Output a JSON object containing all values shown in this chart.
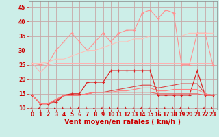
{
  "bg_color": "#cceee8",
  "grid_color": "#c8a8a8",
  "xlabel_str": "Vent moyen/en rafales ( km/h )",
  "xlabel_color": "#cc0000",
  "xlabel_fontsize": 7,
  "tick_color": "#cc0000",
  "tick_fontsize": 5.5,
  "ylim": [
    9.5,
    47
  ],
  "xlim": [
    -0.5,
    23.5
  ],
  "yticks": [
    10,
    15,
    20,
    25,
    30,
    35,
    40,
    45
  ],
  "xticks": [
    0,
    1,
    2,
    3,
    4,
    5,
    6,
    7,
    8,
    9,
    10,
    11,
    12,
    13,
    14,
    15,
    16,
    17,
    18,
    19,
    20,
    21,
    22,
    23
  ],
  "lines": [
    {
      "color": "#ffb0b0",
      "lw": 0.8,
      "marker": null,
      "y": [
        25.5,
        22.5,
        25,
        25.5,
        25.5,
        25.5,
        25.5,
        25.5,
        25.5,
        25.5,
        25.5,
        25.5,
        25.5,
        25.5,
        25.5,
        25.5,
        25.5,
        25.5,
        25.5,
        25.5,
        25.5,
        25.5,
        25.5,
        25.5
      ]
    },
    {
      "color": "#ff9090",
      "lw": 0.8,
      "marker": "+",
      "ms": 3.5,
      "y": [
        25.5,
        25,
        25.5,
        30,
        33,
        36,
        33,
        30,
        33,
        36,
        33,
        36,
        37,
        37,
        43,
        44,
        41,
        44,
        43,
        25,
        25,
        36,
        36,
        25
      ]
    },
    {
      "color": "#ffc0b8",
      "lw": 0.8,
      "marker": null,
      "y": [
        25.5,
        25.5,
        26,
        27,
        27,
        28,
        29,
        30,
        30,
        31,
        32,
        33,
        33,
        34,
        34,
        35,
        35,
        35,
        35,
        35,
        36,
        36,
        36,
        36
      ]
    },
    {
      "color": "#dd2222",
      "lw": 0.9,
      "marker": "+",
      "ms": 3.5,
      "y": [
        14.5,
        11.5,
        11.5,
        12,
        14.5,
        15,
        15,
        19,
        19,
        19,
        23,
        23,
        23,
        23,
        23,
        23,
        14.5,
        14.5,
        14.5,
        14.5,
        14.5,
        23,
        14.5,
        14.5
      ]
    },
    {
      "color": "#dd4444",
      "lw": 0.8,
      "marker": null,
      "y": [
        14.5,
        11.5,
        11.5,
        12.5,
        14.5,
        14.5,
        14.5,
        15,
        15.5,
        15.5,
        16,
        16.5,
        17,
        17.5,
        18,
        18,
        17,
        17.5,
        18,
        18.5,
        18.5,
        18.5,
        15,
        14.5
      ]
    },
    {
      "color": "#ee6060",
      "lw": 0.8,
      "marker": null,
      "y": [
        14.5,
        11.5,
        11.5,
        13,
        14.5,
        14.5,
        14.5,
        15,
        15.5,
        15.5,
        15.5,
        15.5,
        15.5,
        15.5,
        15.5,
        15.5,
        15,
        15,
        15,
        15,
        15,
        15,
        14.5,
        14.5
      ]
    },
    {
      "color": "#ff8080",
      "lw": 0.8,
      "marker": null,
      "y": [
        14.5,
        11.5,
        11.5,
        13,
        14.5,
        14.5,
        14.5,
        15,
        15.5,
        15.5,
        15.5,
        16,
        16,
        16.5,
        17,
        17,
        16,
        16,
        16.5,
        16.5,
        16.5,
        16.5,
        15,
        14.5
      ]
    }
  ],
  "arrow_color": "#cc0000",
  "spine_color": "#888888"
}
